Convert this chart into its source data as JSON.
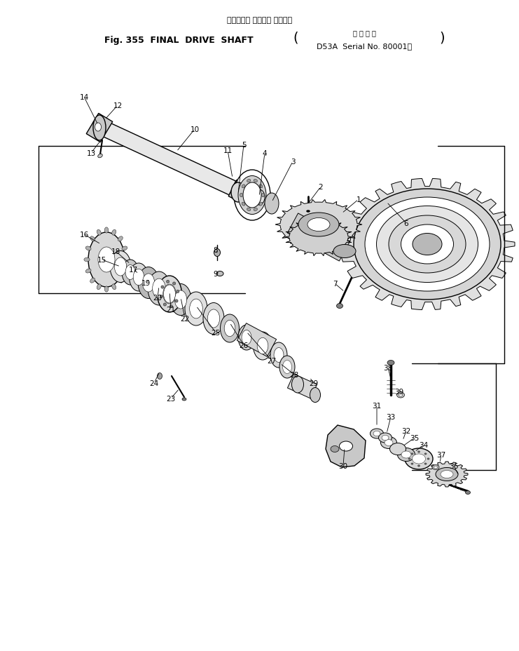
{
  "title_line1": "ファイナル ドライブ シャフト",
  "title_line2_prefix": "Fig. 355  FINAL  DRIVE  SHAFT",
  "title_line2_suffix": "D53A  Serial No. 80001～",
  "title_line2_bracket_label": "適 用 号 機",
  "bg_color": "#ffffff",
  "line_color": "#000000",
  "fig_width": 7.41,
  "fig_height": 9.29,
  "dpi": 100
}
